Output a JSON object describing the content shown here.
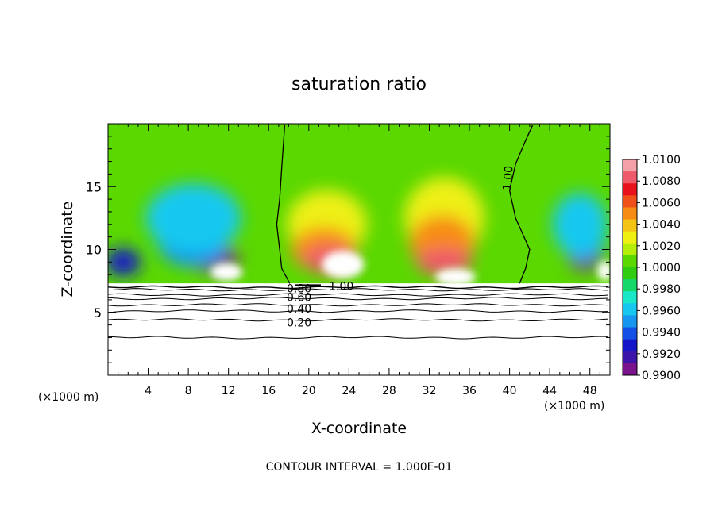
{
  "chart_data": {
    "type": "heatmap",
    "title": "saturation ratio",
    "xlabel": "X-coordinate",
    "ylabel": "Z-coordinate",
    "x_unit_left": "(×1000 m)",
    "x_unit_right": "(×1000 m)",
    "footer": "CONTOUR INTERVAL = 1.000E-01",
    "xlim": [
      0,
      50
    ],
    "ylim": [
      0,
      20
    ],
    "x_ticks": [
      "4",
      "8",
      "12",
      "16",
      "20",
      "24",
      "28",
      "32",
      "36",
      "40",
      "44",
      "48"
    ],
    "x_tick_values": [
      4,
      8,
      12,
      16,
      20,
      24,
      28,
      32,
      36,
      40,
      44,
      48
    ],
    "y_ticks": [
      "5",
      "10",
      "15"
    ],
    "y_tick_values": [
      5,
      10,
      15
    ],
    "colorbar": {
      "levels": [
        "1.0100",
        "1.0080",
        "1.0060",
        "1.0040",
        "1.0020",
        "1.0000",
        "0.9980",
        "0.9960",
        "0.9940",
        "0.9920",
        "0.9900"
      ],
      "colors": [
        "#f4a0a8",
        "#ee5a6a",
        "#e8121c",
        "#f0501a",
        "#f78c14",
        "#f3c414",
        "#eef012",
        "#b4ee0a",
        "#5ad800",
        "#30cc10",
        "#14d86a",
        "#18e8c8",
        "#16c8f0",
        "#1696ee",
        "#1450e6",
        "#1414c8",
        "#3c14aa",
        "#7a148c"
      ]
    },
    "contour_labels": [
      {
        "text": "1.00",
        "x": 39.7,
        "z": 14.7
      },
      {
        "text": "1.00",
        "x": 22.0,
        "z": 7.1
      },
      {
        "text": "0.80",
        "x": 17.8,
        "z": 6.9
      },
      {
        "text": "0.60",
        "x": 17.8,
        "z": 6.2
      },
      {
        "text": "0.40",
        "x": 17.8,
        "z": 5.3
      },
      {
        "text": "0.20",
        "x": 17.8,
        "z": 4.2
      }
    ],
    "contour_lines": [
      {
        "level": 0.8,
        "z": 7.0
      },
      {
        "level": 0.7,
        "z": 6.8
      },
      {
        "level": 0.6,
        "z": 6.4
      },
      {
        "level": 0.5,
        "z": 6.1
      },
      {
        "level": 0.4,
        "z": 5.6
      },
      {
        "level": 0.3,
        "z": 5.1
      },
      {
        "level": 0.2,
        "z": 4.4
      },
      {
        "level": 0.1,
        "z": 3.0
      }
    ],
    "saturation_contour_1_00": [
      [
        [
          18.1,
          7.3
        ],
        [
          17.3,
          8.5
        ],
        [
          17.1,
          10.0
        ],
        [
          16.8,
          12.0
        ],
        [
          17.1,
          14.0
        ],
        [
          17.3,
          16.5
        ],
        [
          17.6,
          19.9
        ]
      ],
      [
        [
          41.0,
          7.3
        ],
        [
          41.6,
          8.5
        ],
        [
          42.0,
          10.0
        ],
        [
          40.6,
          12.5
        ],
        [
          40.0,
          14.7
        ],
        [
          40.6,
          16.8
        ],
        [
          41.5,
          18.5
        ],
        [
          42.3,
          19.9
        ]
      ]
    ],
    "pockets": [
      {
        "x": 10.5,
        "z": 9.3,
        "w": 5.0,
        "h": 2.2,
        "level": 0.99
      },
      {
        "x": 47.5,
        "z": 9.6,
        "w": 3.5,
        "h": 2.6,
        "level": 0.99
      },
      {
        "x": 1.5,
        "z": 9.0,
        "w": 3.5,
        "h": 2.2,
        "level": 0.9925
      },
      {
        "x": 8.5,
        "z": 10.5,
        "w": 7.0,
        "h": 3.8,
        "level": 0.9945
      },
      {
        "x": 47.3,
        "z": 11.0,
        "w": 4.5,
        "h": 4.0,
        "level": 0.9945
      },
      {
        "x": 8.5,
        "z": 12.5,
        "w": 9.5,
        "h": 5.5,
        "level": 0.9965
      },
      {
        "x": 47.0,
        "z": 12.0,
        "w": 5.5,
        "h": 5.0,
        "level": 0.9965
      },
      {
        "x": 21.8,
        "z": 12.0,
        "w": 8.0,
        "h": 5.5,
        "level": 1.0025
      },
      {
        "x": 33.5,
        "z": 12.5,
        "w": 8.0,
        "h": 6.5,
        "level": 1.0025
      },
      {
        "x": 21.5,
        "z": 10.0,
        "w": 6.5,
        "h": 3.5,
        "level": 1.0055
      },
      {
        "x": 33.3,
        "z": 10.5,
        "w": 6.5,
        "h": 4.5,
        "level": 1.005
      },
      {
        "x": 22.0,
        "z": 9.2,
        "w": 5.0,
        "h": 2.2,
        "level": 1.0085
      },
      {
        "x": 33.5,
        "z": 9.0,
        "w": 5.5,
        "h": 2.2,
        "level": 1.0085
      }
    ],
    "cloud_holes": [
      {
        "x": 11.8,
        "z": 8.2,
        "w": 3.2,
        "h": 1.4
      },
      {
        "x": 49.5,
        "z": 8.3,
        "w": 1.5,
        "h": 1.6
      },
      {
        "x": 23.4,
        "z": 8.8,
        "w": 4.2,
        "h": 2.2
      },
      {
        "x": 34.6,
        "z": 7.8,
        "w": 4.0,
        "h": 1.4
      }
    ],
    "data_top_z": 7.3
  }
}
